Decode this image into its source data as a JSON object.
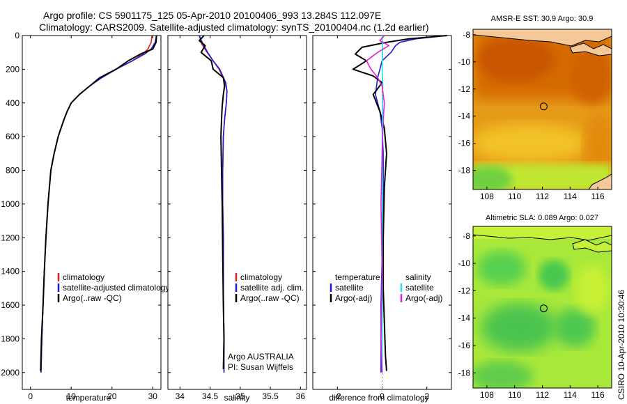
{
  "header": {
    "line1": "Argo profile: CS 5901175_125 05-Apr-2010 20100406_993 13.284S 112.097E",
    "line2": "Climatology: CARS2009. Satellite-adjusted climatology: synTS_20100404.nc (1.2d earlier)"
  },
  "colors": {
    "climatology": "#e0201a",
    "satellite": "#1a1ad8",
    "argo": "#000000",
    "salinity_sat": "#22e0e8",
    "salinity_argo": "#e020d8"
  },
  "timestamp": "CSIRO 10-Apr-2010 10:30:46",
  "chart_data": [
    {
      "type": "line",
      "id": "temperature",
      "xlabel": "temperature",
      "ylabel": "",
      "xlim": [
        -2,
        32
      ],
      "ylim": [
        2100,
        0
      ],
      "xticks": [
        0,
        10,
        20,
        30
      ],
      "xtick_labels": [
        "0",
        "10",
        "20",
        "30"
      ],
      "yticks": [
        0,
        200,
        400,
        600,
        800,
        1000,
        1200,
        1400,
        1600,
        1800,
        2000
      ],
      "ytick_labels": [
        "0",
        "200",
        "400",
        "600",
        "800",
        "1000",
        "1200",
        "1400",
        "1600",
        "1800",
        "2000"
      ],
      "legend": [
        "climatology",
        "satellite-adjusted climatology",
        "Argo(..raw -QC)"
      ],
      "series": [
        {
          "name": "climatology",
          "color": "#e0201a",
          "x": [
            29.8,
            29.6,
            28.8,
            27.5,
            25.0,
            21.0,
            17.5,
            14.5,
            12.0,
            10.0,
            9.0,
            8.2,
            7.5,
            6.8,
            5.8,
            5.0,
            4.3,
            3.8,
            3.4,
            3.1,
            2.8,
            2.6
          ],
          "y": [
            0,
            40,
            80,
            110,
            150,
            200,
            250,
            300,
            350,
            400,
            450,
            500,
            550,
            600,
            700,
            800,
            1000,
            1200,
            1400,
            1600,
            1800,
            2000
          ]
        },
        {
          "name": "satellite-adjusted climatology",
          "color": "#1a1ad8",
          "x": [
            30.9,
            30.6,
            29.6,
            28.0,
            25.0,
            21.0,
            17.5,
            14.5,
            12.0,
            10.0,
            9.0,
            8.2,
            7.5,
            6.8,
            5.8,
            5.0,
            4.3,
            3.8,
            3.4,
            3.1,
            2.8,
            2.6
          ],
          "y": [
            0,
            40,
            80,
            110,
            150,
            200,
            250,
            300,
            350,
            400,
            450,
            500,
            550,
            600,
            700,
            800,
            1000,
            1200,
            1400,
            1600,
            1800,
            2000
          ]
        },
        {
          "name": "Argo(..raw -QC)",
          "color": "#000000",
          "x": [
            30.9,
            30.8,
            30.0,
            27.0,
            24.0,
            21.0,
            17.0,
            14.5,
            12.0,
            10.0,
            9.0,
            8.2,
            7.5,
            6.8,
            5.8,
            5.0,
            4.3,
            3.8,
            3.4,
            3.1,
            2.7,
            2.5
          ],
          "y": [
            0,
            40,
            80,
            110,
            150,
            200,
            250,
            300,
            350,
            400,
            450,
            500,
            550,
            600,
            700,
            800,
            1000,
            1200,
            1400,
            1600,
            1800,
            1990
          ]
        }
      ]
    },
    {
      "type": "line",
      "id": "salinity",
      "xlabel": "salinity",
      "xlim": [
        33.8,
        36.1
      ],
      "ylim": [
        2100,
        0
      ],
      "xticks": [
        34,
        34.5,
        35,
        35.5,
        36
      ],
      "xtick_labels": [
        "34",
        "34.5",
        "35",
        "35.5",
        "36"
      ],
      "legend": [
        "climatology",
        "satellite adj. clim.",
        "Argo(..raw -QC)"
      ],
      "annotation": [
        "Argo AUSTRALIA",
        "PI: Susan Wijffels"
      ],
      "series": [
        {
          "name": "climatology",
          "color": "#e0201a",
          "x": [
            34.32,
            34.36,
            34.45,
            34.55,
            34.65,
            34.75,
            34.78,
            34.77,
            34.74,
            34.72,
            34.71,
            34.71,
            34.72,
            34.72,
            34.73,
            34.73
          ],
          "y": [
            0,
            50,
            100,
            150,
            200,
            280,
            330,
            400,
            500,
            600,
            800,
            1000,
            1200,
            1500,
            1800,
            2000
          ]
        },
        {
          "name": "satellite adj. clim.",
          "color": "#1a1ad8",
          "x": [
            34.32,
            34.38,
            34.46,
            34.55,
            34.66,
            34.76,
            34.78,
            34.77,
            34.74,
            34.72,
            34.71,
            34.71,
            34.72,
            34.72,
            34.73,
            34.73
          ],
          "y": [
            0,
            50,
            100,
            150,
            200,
            280,
            330,
            400,
            500,
            600,
            800,
            1000,
            1200,
            1500,
            1800,
            2000
          ]
        },
        {
          "name": "Argo(..raw -QC)",
          "color": "#000000",
          "x": [
            34.4,
            34.32,
            34.42,
            34.35,
            34.52,
            34.55,
            34.72,
            34.74,
            34.72,
            34.7,
            34.69,
            34.68,
            34.69,
            34.7,
            34.71,
            34.72,
            34.73,
            34.72
          ],
          "y": [
            0,
            30,
            60,
            100,
            150,
            200,
            250,
            300,
            350,
            420,
            500,
            600,
            800,
            1000,
            1300,
            1600,
            1800,
            1980
          ]
        }
      ]
    },
    {
      "type": "line",
      "id": "difference",
      "xlabel": "difference from climatology",
      "xlim": [
        -3.1,
        3.1
      ],
      "ylim": [
        2100,
        0
      ],
      "xticks": [
        -2,
        0,
        2
      ],
      "xtick_labels": [
        "-2",
        "0",
        "2"
      ],
      "legend_temperature": {
        "heading": "temperature",
        "items": [
          "satellite",
          "Argo(-adj)"
        ]
      },
      "legend_salinity": {
        "heading": "salinity",
        "items": [
          "satellite",
          "Argo(-adj)"
        ]
      },
      "series": [
        {
          "name": "temperature satellite",
          "color": "#1a1ad8",
          "x": [
            2.9,
            1.5,
            0.8,
            0.6,
            0.4,
            0.0,
            -0.2,
            -0.3,
            -0.1,
            0.0,
            0.05,
            0.05,
            0.0,
            -0.05,
            -0.05,
            -0.05
          ],
          "y": [
            0,
            20,
            40,
            60,
            100,
            150,
            250,
            350,
            450,
            550,
            700,
            1000,
            1300,
            1600,
            1800,
            2000
          ]
        },
        {
          "name": "temperature Argo(-adj)",
          "color": "#000000",
          "x": [
            2.9,
            1.2,
            0.2,
            -0.9,
            -1.2,
            -0.7,
            -1.3,
            -0.4,
            0.0,
            -0.4,
            -0.1,
            0.1,
            0.2,
            0.1,
            0.05,
            0.05,
            0.1,
            0.15,
            0.2
          ],
          "y": [
            0,
            20,
            40,
            70,
            110,
            150,
            200,
            240,
            280,
            350,
            450,
            550,
            700,
            900,
            1200,
            1500,
            1700,
            1900,
            1990
          ]
        },
        {
          "name": "salinity satellite",
          "color": "#22e0e8",
          "x": [
            0.0,
            0.02,
            0.0,
            0.03,
            0.02,
            0.01,
            0.0,
            0.02,
            0.0,
            0.01,
            0.0,
            0.0
          ],
          "y": [
            0,
            100,
            200,
            300,
            400,
            500,
            700,
            900,
            1200,
            1500,
            1800,
            2000
          ]
        },
        {
          "name": "salinity Argo(-adj)",
          "color": "#e020d8",
          "x": [
            0.1,
            -0.1,
            0.3,
            -0.2,
            -0.7,
            -0.5,
            -0.2,
            0.0,
            0.1,
            0.05,
            0.0,
            -0.05,
            0.0,
            -0.05,
            0.0
          ],
          "y": [
            0,
            30,
            60,
            100,
            150,
            200,
            250,
            300,
            400,
            500,
            700,
            1000,
            1400,
            1800,
            2000
          ]
        }
      ]
    },
    {
      "type": "heatmap",
      "id": "sst-map",
      "title": "AMSR-E SST: 30.9  Argo: 30.9",
      "xticks": [
        108,
        110,
        112,
        114,
        116
      ],
      "xtick_labels": [
        "108",
        "110",
        "112",
        "114",
        "116"
      ],
      "yticks": [
        -8,
        -10,
        -12,
        -14,
        -16,
        -18
      ],
      "ytick_labels": [
        "-8",
        "-10",
        "-12",
        "-14",
        "-16",
        "-18"
      ],
      "xlim": [
        107,
        117
      ],
      "ylim": [
        -19.4,
        -7.6
      ],
      "marker": {
        "lon": 112.097,
        "lat": -13.284
      }
    },
    {
      "type": "heatmap",
      "id": "sla-map",
      "title": "Altimetric SLA: 0.089  Argo: 0.027",
      "xticks": [
        108,
        110,
        112,
        114,
        116
      ],
      "xtick_labels": [
        "108",
        "110",
        "112",
        "114",
        "116"
      ],
      "yticks": [
        -8,
        -10,
        -12,
        -14,
        -16,
        -18
      ],
      "ytick_labels": [
        "-8",
        "-10",
        "-12",
        "-14",
        "-16",
        "-18"
      ],
      "xlim": [
        107,
        117
      ],
      "ylim": [
        -19.1,
        -7.3
      ],
      "marker": {
        "lon": 112.097,
        "lat": -13.284
      }
    }
  ]
}
